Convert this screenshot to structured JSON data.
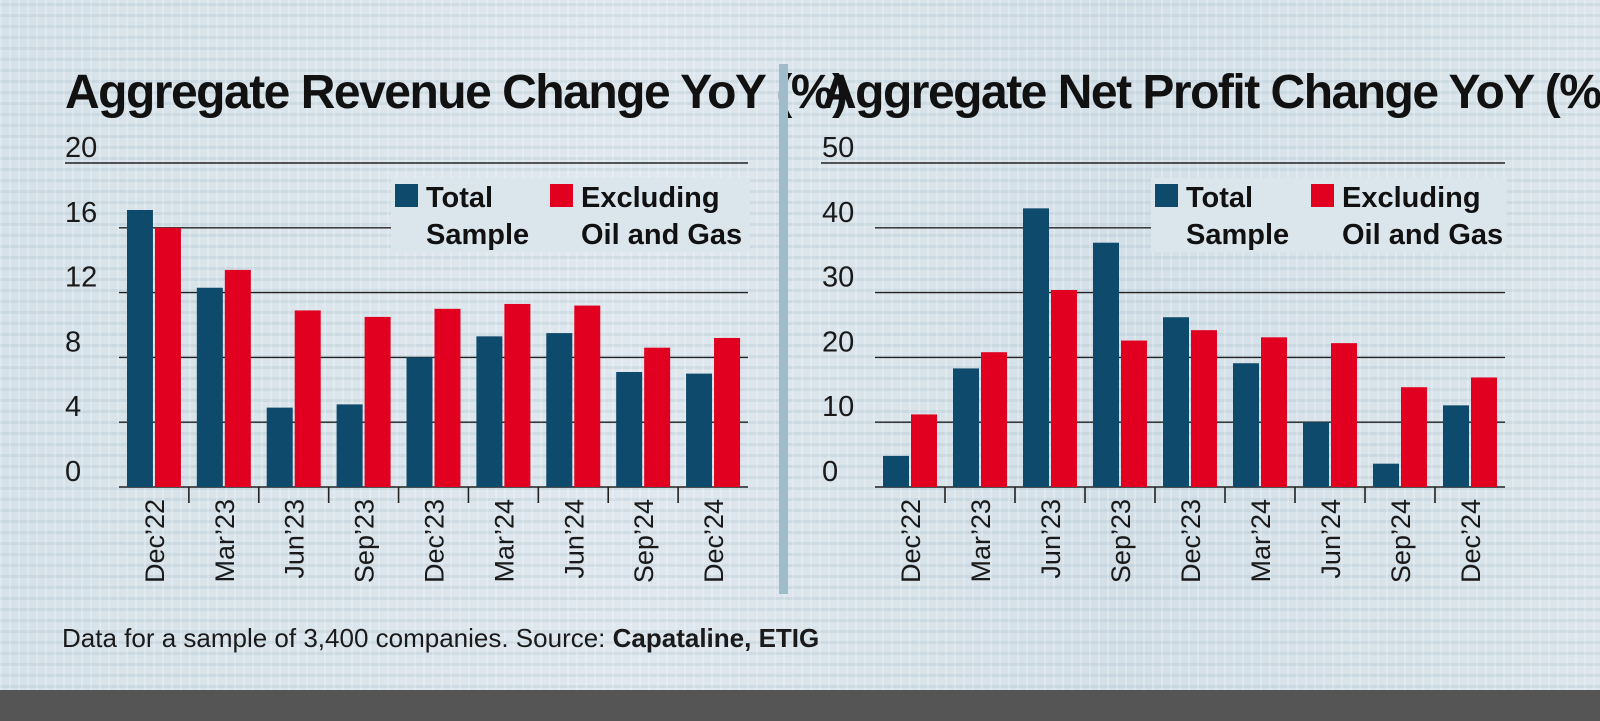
{
  "colors": {
    "total_sample": "#0e4a6b",
    "excluding_oil_gas": "#e1001f",
    "background": "#d9e4ea",
    "bottom_band": "#555555"
  },
  "legend": {
    "total_line1": "Total",
    "total_line2": "Sample",
    "excl_line1": "Excluding",
    "excl_line2": "Oil and Gas"
  },
  "footer": {
    "text": "Data for a sample of 3,400 companies. Source: ",
    "source": "Capataline, ETIG"
  },
  "chart_data": [
    {
      "type": "bar",
      "title": "Aggregate Revenue Change YoY (%)",
      "categories": [
        "Dec’22",
        "Mar’23",
        "Jun’23",
        "Sep’23",
        "Dec’23",
        "Mar’24",
        "Jun’24",
        "Sep’24",
        "Dec’24"
      ],
      "series": [
        {
          "name": "Total Sample",
          "values": [
            17.1,
            12.3,
            4.9,
            5.1,
            8.0,
            9.3,
            9.5,
            7.1,
            7.0
          ]
        },
        {
          "name": "Excluding Oil and Gas",
          "values": [
            16.0,
            13.4,
            10.9,
            10.5,
            11.0,
            11.3,
            11.2,
            8.6,
            9.2
          ]
        }
      ],
      "yticks": [
        0,
        4,
        8,
        12,
        16,
        20
      ],
      "ylim": [
        0,
        21
      ],
      "grid": true,
      "legend_position": "top-right"
    },
    {
      "type": "bar",
      "title": "Aggregate Net Profit Change YoY (%)",
      "categories": [
        "Dec’22",
        "Mar’23",
        "Jun’23",
        "Sep’23",
        "Dec’23",
        "Mar’24",
        "Jun’24",
        "Sep’24",
        "Dec’24"
      ],
      "series": [
        {
          "name": "Total Sample",
          "values": [
            4.8,
            18.3,
            43.0,
            37.7,
            26.2,
            19.1,
            10.0,
            3.6,
            12.6
          ]
        },
        {
          "name": "Excluding Oil and Gas",
          "values": [
            11.2,
            20.8,
            30.4,
            22.6,
            24.2,
            23.1,
            22.2,
            15.4,
            16.9
          ]
        }
      ],
      "yticks": [
        10,
        20,
        30,
        40,
        50
      ],
      "ylim": [
        0,
        52
      ],
      "grid": true,
      "legend_position": "top-right"
    }
  ]
}
